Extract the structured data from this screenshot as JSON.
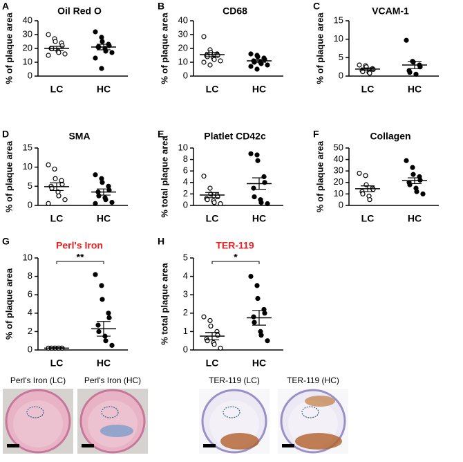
{
  "chart_data": [
    {
      "type": "dotplot",
      "label": "A",
      "title": "Oil Red O",
      "ylabel": "% of plaque area",
      "categories": [
        "LC",
        "HC"
      ],
      "markers": [
        "open",
        "filled"
      ],
      "color": "#000000",
      "points": [
        [
          30,
          27,
          25,
          24,
          22,
          20,
          20,
          18,
          17,
          16,
          15
        ],
        [
          32,
          28,
          25,
          23,
          22,
          21,
          21,
          20,
          18,
          17,
          13,
          5.5
        ]
      ],
      "mean": [
        20,
        21
      ],
      "sem": [
        1.5,
        2
      ],
      "ylim": [
        0,
        40
      ],
      "yticks": [
        0,
        10,
        20,
        30,
        40
      ]
    },
    {
      "type": "dotplot",
      "label": "B",
      "title": "CD68",
      "ylabel": "% of plaque area",
      "categories": [
        "LC",
        "HC"
      ],
      "markers": [
        "open",
        "filled"
      ],
      "color": "#000000",
      "points": [
        [
          28.5,
          19,
          17,
          16,
          15,
          15,
          14,
          13,
          12,
          11,
          10,
          8
        ],
        [
          16,
          15,
          14,
          13,
          12,
          11,
          10,
          10,
          9,
          8,
          7,
          5
        ]
      ],
      "mean": [
        15.5,
        11
      ],
      "sem": [
        1.5,
        1
      ],
      "ylim": [
        0,
        40
      ],
      "yticks": [
        0,
        10,
        20,
        30,
        40
      ]
    },
    {
      "type": "dotplot",
      "label": "C",
      "title": "VCAM-1",
      "ylabel": "% of plaque area",
      "categories": [
        "LC",
        "HC"
      ],
      "markers": [
        "open",
        "filled"
      ],
      "color": "#000000",
      "points": [
        [
          3,
          2.8,
          2.5,
          2,
          1.8,
          1.5,
          1.2,
          1,
          0.8
        ],
        [
          9.7,
          4,
          3.8,
          3,
          2.5,
          1.5,
          1,
          0.5
        ]
      ],
      "mean": [
        1.9,
        3
      ],
      "sem": [
        0.3,
        1
      ],
      "ylim": [
        0,
        15
      ],
      "yticks": [
        0,
        5,
        10,
        15
      ]
    },
    {
      "type": "dotplot",
      "label": "D",
      "title": "SMA",
      "ylabel": "% of plaque area",
      "categories": [
        "LC",
        "HC"
      ],
      "markers": [
        "open",
        "filled"
      ],
      "color": "#000000",
      "points": [
        [
          10.6,
          9.5,
          7,
          6.5,
          5.5,
          5,
          4.5,
          3.5,
          2.5,
          1.5,
          0.5
        ],
        [
          8,
          7,
          6,
          5,
          4,
          3.5,
          2.5,
          2,
          1.5,
          0.8,
          0.5
        ]
      ],
      "mean": [
        4.9,
        3.5
      ],
      "sem": [
        1,
        0.8
      ],
      "ylim": [
        0,
        15
      ],
      "yticks": [
        0,
        5,
        10,
        15
      ]
    },
    {
      "type": "dotplot",
      "label": "E",
      "title": "Platlet CD42c",
      "ylabel": "% total plaque area",
      "categories": [
        "LC",
        "HC"
      ],
      "markers": [
        "open",
        "filled"
      ],
      "color": "#000000",
      "points": [
        [
          5.1,
          3,
          2,
          1.8,
          1.5,
          1.2,
          1,
          0.8,
          0.5,
          0.3
        ],
        [
          9,
          8.8,
          7.8,
          5,
          4,
          3,
          1.5,
          1,
          0.5,
          0.3
        ]
      ],
      "mean": [
        1.8,
        3.8
      ],
      "sem": [
        0.45,
        1
      ],
      "ylim": [
        0,
        10
      ],
      "yticks": [
        0,
        2,
        4,
        6,
        8,
        10
      ]
    },
    {
      "type": "dotplot",
      "label": "F",
      "title": "Collagen",
      "ylabel": "% of plaque area",
      "categories": [
        "LC",
        "HC"
      ],
      "markers": [
        "open",
        "filled"
      ],
      "color": "#000000",
      "points": [
        [
          28,
          26,
          18,
          15,
          14,
          12,
          10,
          8,
          5
        ],
        [
          39,
          33,
          27,
          25,
          22,
          20,
          18,
          15,
          12,
          10
        ]
      ],
      "mean": [
        14.5,
        21.5
      ],
      "sem": [
        2.5,
        2.5
      ],
      "ylim": [
        0,
        50
      ],
      "yticks": [
        0,
        10,
        20,
        30,
        40,
        50
      ]
    },
    {
      "type": "dotplot",
      "label": "G",
      "title": "Perl's Iron",
      "title_color": "#e8201f",
      "ylabel": "% of plaque area",
      "categories": [
        "LC",
        "HC"
      ],
      "markers": [
        "open",
        "filled"
      ],
      "color": "#000000",
      "points": [
        [
          0.2,
          0.2,
          0.2,
          0.2,
          0.2,
          0.2,
          0.2,
          0.2,
          0.2
        ],
        [
          8.2,
          7,
          5.5,
          4,
          3.5,
          2.7,
          2,
          1.5,
          1,
          0.5
        ]
      ],
      "mean": [
        0.2,
        2.3
      ],
      "sem": [
        0.05,
        0.8
      ],
      "ylim": [
        0,
        10
      ],
      "yticks": [
        0,
        2,
        4,
        6,
        8,
        10
      ],
      "annotation": "**"
    },
    {
      "type": "dotplot",
      "label": "H",
      "title": "TER-119",
      "title_color": "#e8201f",
      "ylabel": "% total plaque area",
      "categories": [
        "LC",
        "HC"
      ],
      "markers": [
        "open",
        "filled"
      ],
      "color": "#000000",
      "points": [
        [
          1.8,
          1.6,
          1.3,
          1,
          0.8,
          0.6,
          0.5,
          0.4,
          0.3,
          0.1
        ],
        [
          4,
          3.5,
          2.8,
          2.2,
          2,
          1.8,
          1.5,
          1,
          0.8,
          0.5
        ]
      ],
      "mean": [
        0.75,
        1.75
      ],
      "sem": [
        0.2,
        0.4
      ],
      "ylim": [
        0,
        5
      ],
      "yticks": [
        0,
        1,
        2,
        3,
        4,
        5
      ],
      "annotation": "*"
    }
  ],
  "images": [
    {
      "caption": "Perl's Iron (LC)"
    },
    {
      "caption": "Perl's Iron (HC)"
    },
    {
      "caption": "TER-119 (LC)"
    },
    {
      "caption": "TER-119 (HC)"
    }
  ]
}
